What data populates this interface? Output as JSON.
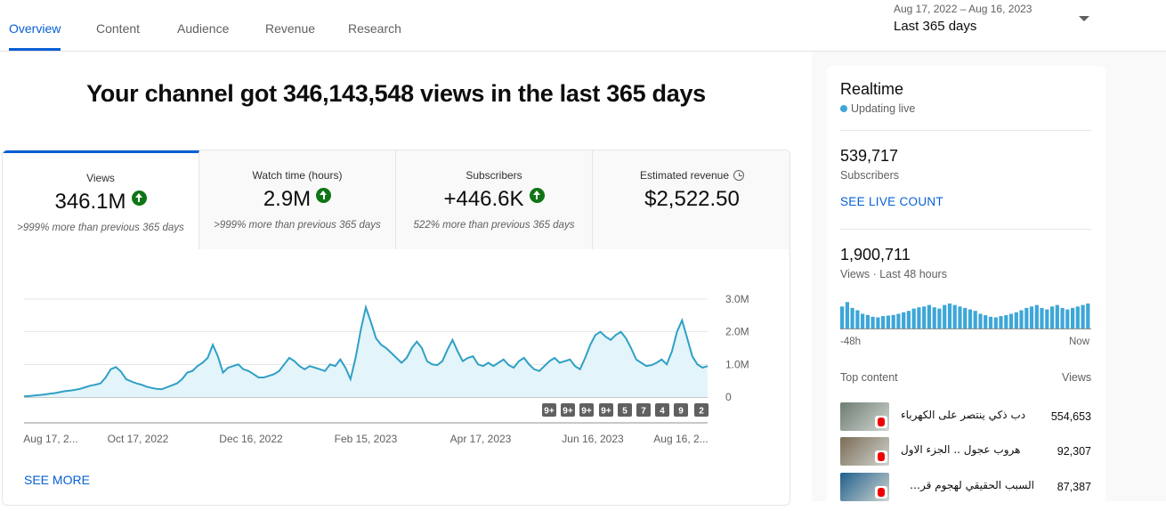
{
  "tabs": [
    "Overview",
    "Content",
    "Audience",
    "Revenue",
    "Research"
  ],
  "date_range": "Aug 17, 2022 – Aug 16, 2023",
  "date_label": "Last 365 days",
  "headline": "Your channel got 346,143,548 views in the last 365 days",
  "metrics": [
    {
      "title": "Views",
      "value": "346.1M",
      "sub": ">999% more than previous 365 days"
    },
    {
      "title": "Watch time (hours)",
      "value": "2.9M",
      "sub": ">999% more than previous 365 days"
    },
    {
      "title": "Subscribers",
      "value": "+446.6K",
      "sub": "522% more than previous 365 days"
    },
    {
      "title": "Estimated revenue",
      "value": "$2,522.50",
      "sub": ""
    }
  ],
  "see_more": "SEE MORE",
  "chart_data": {
    "type": "area",
    "x_tick_labels": [
      "Aug 17, 2...",
      "Oct 17, 2022",
      "Dec 16, 2022",
      "Feb 15, 2023",
      "Apr 17, 2023",
      "Jun 16, 2023",
      "Aug 16, 2..."
    ],
    "y_tick_labels": [
      "3.0M",
      "2.0M",
      "1.0M",
      "0"
    ],
    "ylim": [
      0,
      3000000
    ],
    "values": [
      0.02,
      0.03,
      0.05,
      0.06,
      0.08,
      0.1,
      0.12,
      0.15,
      0.18,
      0.2,
      0.22,
      0.25,
      0.3,
      0.35,
      0.38,
      0.42,
      0.6,
      0.85,
      0.92,
      0.78,
      0.55,
      0.48,
      0.42,
      0.38,
      0.32,
      0.28,
      0.25,
      0.24,
      0.3,
      0.36,
      0.42,
      0.55,
      0.75,
      0.8,
      0.95,
      1.05,
      1.2,
      1.6,
      1.25,
      0.75,
      0.9,
      0.95,
      1.0,
      0.85,
      0.8,
      0.7,
      0.6,
      0.6,
      0.65,
      0.7,
      0.8,
      1.0,
      1.2,
      1.1,
      0.95,
      0.85,
      0.95,
      0.9,
      0.85,
      0.8,
      1.0,
      0.95,
      1.15,
      0.9,
      0.55,
      1.2,
      2.05,
      2.75,
      2.3,
      1.8,
      1.6,
      1.5,
      1.35,
      1.2,
      1.05,
      1.2,
      1.5,
      1.7,
      1.5,
      1.1,
      1.0,
      0.98,
      1.1,
      1.45,
      1.75,
      1.4,
      1.1,
      1.2,
      1.25,
      1.0,
      0.95,
      1.05,
      0.95,
      1.05,
      1.15,
      0.98,
      0.9,
      1.1,
      1.2,
      1.0,
      0.85,
      0.8,
      0.95,
      1.1,
      1.2,
      1.05,
      1.1,
      1.15,
      0.95,
      0.85,
      1.2,
      1.6,
      1.9,
      2.0,
      1.85,
      1.75,
      1.9,
      2.0,
      1.8,
      1.5,
      1.15,
      1.05,
      0.95,
      0.98,
      1.05,
      1.15,
      1.0,
      1.4,
      2.0,
      2.35,
      1.8,
      1.25,
      1.0,
      0.9,
      0.95
    ],
    "marker_badges": [
      "9+",
      "9+",
      "9+",
      "9+",
      "5",
      "7",
      "4",
      "9",
      "2"
    ]
  },
  "realtime": {
    "title": "Realtime",
    "live_label": "Updating live",
    "subscribers_value": "539,717",
    "subscribers_label": "Subscribers",
    "live_count_link": "SEE LIVE COUNT",
    "views_value": "1,900,711",
    "views_label": "Views · Last 48 hours",
    "axis_left": "-48h",
    "axis_right": "Now",
    "bars": [
      0.75,
      0.9,
      0.7,
      0.62,
      0.5,
      0.46,
      0.4,
      0.38,
      0.42,
      0.44,
      0.46,
      0.5,
      0.55,
      0.6,
      0.68,
      0.72,
      0.75,
      0.8,
      0.72,
      0.68,
      0.8,
      0.85,
      0.8,
      0.75,
      0.7,
      0.65,
      0.6,
      0.5,
      0.45,
      0.4,
      0.38,
      0.42,
      0.45,
      0.5,
      0.55,
      0.62,
      0.7,
      0.75,
      0.8,
      0.7,
      0.65,
      0.75,
      0.8,
      0.7,
      0.65,
      0.7,
      0.75,
      0.8,
      0.85
    ],
    "top_content_label": "Top content",
    "views_col_label": "Views",
    "top_content": [
      {
        "title": "دب ذكي ينتصر على الكهرباء",
        "views": "554,653",
        "thumb_color": "#6f7d73"
      },
      {
        "title": "هروب عجول .. الجزء الاول",
        "views": "92,307",
        "thumb_color": "#7c6b55"
      },
      {
        "title": "السبب الحقيقي لهجوم قرش الغردقة",
        "views": "87,387",
        "thumb_color": "#1f5f8c"
      }
    ]
  },
  "colors": {
    "accent": "#065fd4",
    "chart_line": "#2fa0c5",
    "chart_fill": "#e3f4fa",
    "up": "#107516",
    "rt_bar": "#3ea6d8"
  }
}
